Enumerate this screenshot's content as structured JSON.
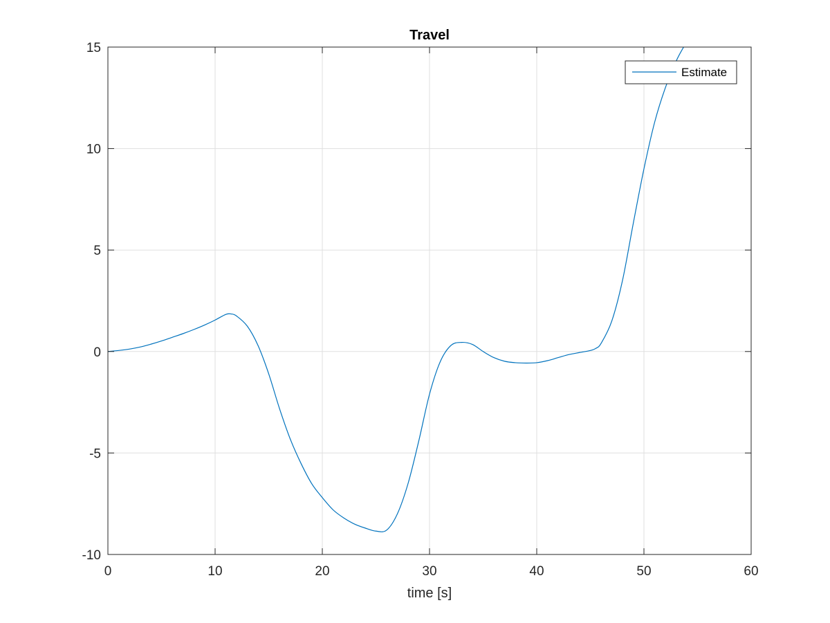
{
  "chart_data": {
    "type": "line",
    "title": "Travel",
    "xlabel": "time [s]",
    "ylabel": "",
    "xlim": [
      0,
      60
    ],
    "ylim": [
      -10,
      15
    ],
    "xticks": [
      0,
      10,
      20,
      30,
      40,
      50,
      60
    ],
    "yticks": [
      -10,
      -5,
      0,
      5,
      10,
      15
    ],
    "xtick_labels": [
      "0",
      "10",
      "20",
      "30",
      "40",
      "50",
      "60"
    ],
    "ytick_labels": [
      "-10",
      "-5",
      "0",
      "5",
      "10",
      "15"
    ],
    "grid": true,
    "legend_position": "top-right",
    "colors": {
      "series": "#0072bd",
      "axes": "#262626",
      "grid": "#dfdfdf",
      "background": "#ffffff"
    },
    "series": [
      {
        "name": "Estimate",
        "x": [
          0,
          1,
          2,
          3,
          4,
          5,
          6,
          7,
          8,
          9,
          10,
          11,
          11.5,
          12,
          13,
          14,
          15,
          16,
          17,
          18,
          19,
          20,
          21,
          22,
          23,
          24,
          25,
          26,
          27,
          28,
          29,
          30,
          31,
          32,
          33,
          34,
          35,
          36,
          37,
          38,
          39,
          40,
          41,
          42,
          43,
          44,
          45,
          45.5,
          46,
          47,
          48,
          49,
          50,
          51,
          52,
          53,
          53.7
        ],
        "y": [
          0,
          0.05,
          0.12,
          0.22,
          0.36,
          0.52,
          0.7,
          0.88,
          1.08,
          1.3,
          1.55,
          1.83,
          1.85,
          1.75,
          1.25,
          0.3,
          -1.1,
          -2.8,
          -4.3,
          -5.5,
          -6.5,
          -7.2,
          -7.8,
          -8.2,
          -8.5,
          -8.7,
          -8.85,
          -8.8,
          -8.0,
          -6.5,
          -4.4,
          -2.1,
          -0.5,
          0.3,
          0.45,
          0.35,
          0.0,
          -0.3,
          -0.48,
          -0.55,
          -0.57,
          -0.55,
          -0.45,
          -0.3,
          -0.15,
          -0.05,
          0.05,
          0.15,
          0.4,
          1.5,
          3.5,
          6.3,
          9.0,
          11.3,
          13.0,
          14.3,
          15.0
        ]
      }
    ]
  }
}
